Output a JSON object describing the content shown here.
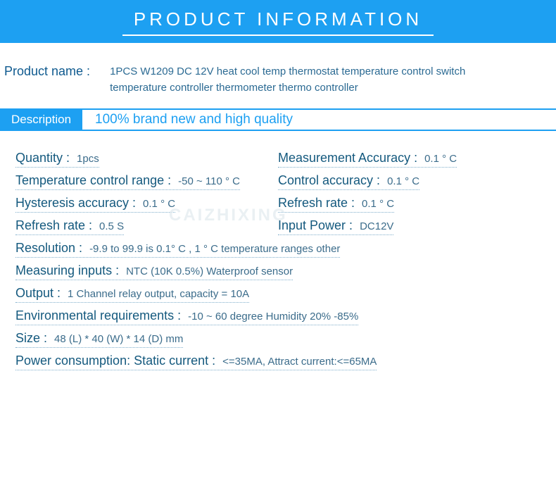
{
  "banner": {
    "title": "PRODUCT INFORMATION"
  },
  "product_name": {
    "label": "Product name :",
    "value": "1PCS W1209 DC 12V heat cool temp thermostat temperature control switch temperature controller thermometer thermo controller"
  },
  "description_bar": {
    "chip": "Description",
    "text": "100% brand new and high quality"
  },
  "specs": {
    "quantity": {
      "label": "Quantity :",
      "value": "1pcs"
    },
    "meas_acc": {
      "label": "Measurement Accuracy :",
      "value": "0.1 ° C"
    },
    "temp_range": {
      "label": "Temperature control range :",
      "value": "-50 ~ 110 ° C"
    },
    "ctrl_acc": {
      "label": "Control accuracy :",
      "value": "0.1 ° C"
    },
    "hyst_acc": {
      "label": "Hysteresis accuracy :",
      "value": "0.1 ° C"
    },
    "refresh_c": {
      "label": "Refresh rate :",
      "value": "0.1 ° C"
    },
    "refresh_s": {
      "label": "Refresh rate :",
      "value": "0.5 S"
    },
    "input_power": {
      "label": "Input Power :",
      "value": "DC12V"
    },
    "resolution": {
      "label": "Resolution :",
      "value": "-9.9 to 99.9 is 0.1° C , 1 ° C temperature ranges other"
    },
    "meas_inputs": {
      "label": "Measuring inputs :",
      "value": "NTC (10K 0.5%) Waterproof sensor"
    },
    "output": {
      "label": "Output :",
      "value": "1 Channel relay output, capacity = 10A"
    },
    "env_req": {
      "label": "Environmental requirements :",
      "value": "-10 ~ 60 degree Humidity 20% -85%"
    },
    "size": {
      "label": "Size :",
      "value": "48 (L) * 40 (W) * 14 (D) mm"
    },
    "power_cons": {
      "label": "Power consumption: Static current :",
      "value": "<=35MA, Attract current:<=65MA"
    }
  },
  "watermark": "CAIZHIXING",
  "colors": {
    "accent": "#1da0f2",
    "label": "#14597e",
    "value": "#3b6c8b"
  }
}
